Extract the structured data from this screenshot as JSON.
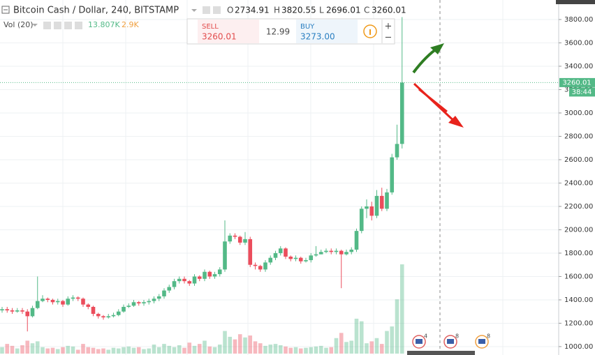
{
  "chart_data": {
    "type": "candlestick",
    "header": {
      "symbol": "Bitcoin Cash / Dollar, 240, BITSTAMP",
      "o": "O",
      "h": "H",
      "l": "L",
      "c": "C",
      "vol_title": "Vol (20)",
      "vol_value": "13.807K",
      "vol_ma": "2.9K",
      "countdown": "38:44"
    },
    "trade": {
      "sell_label": "SELL",
      "sell": "3260.01",
      "spread": "12.99",
      "buy_label": "BUY",
      "buy": "3273.00"
    },
    "events": [
      "4",
      "8",
      "8"
    ],
    "up_color": "#53b987",
    "down_color": "#eb4d5c",
    "open": [
      1310,
      1320,
      1310,
      1300,
      1310,
      1300,
      1260,
      1330,
      1390,
      1410,
      1400,
      1380,
      1390,
      1360,
      1410,
      1420,
      1410,
      1360,
      1340,
      1280,
      1260,
      1250,
      1260,
      1270,
      1300,
      1340,
      1350,
      1380,
      1370,
      1380,
      1390,
      1410,
      1430,
      1480,
      1510,
      1560,
      1580,
      1560,
      1540,
      1600,
      1580,
      1640,
      1600,
      1620,
      1660,
      1900,
      1950,
      1940,
      1890,
      1920,
      1700,
      1690,
      1660,
      1720,
      1760,
      1800,
      1840,
      1770,
      1750,
      1760,
      1730,
      1740,
      1780,
      1790,
      1810,
      1820,
      1810,
      1820,
      1790,
      1810,
      1830,
      1990,
      2180,
      2200,
      2120,
      2290,
      2180,
      2320,
      2620,
      2734.91
    ],
    "high": [
      1340,
      1340,
      1330,
      1330,
      1330,
      1320,
      1350,
      1600,
      1440,
      1420,
      1410,
      1410,
      1400,
      1430,
      1440,
      1430,
      1420,
      1370,
      1350,
      1290,
      1270,
      1280,
      1290,
      1320,
      1360,
      1370,
      1400,
      1390,
      1400,
      1410,
      1430,
      1450,
      1500,
      1530,
      1580,
      1600,
      1600,
      1570,
      1620,
      1610,
      1660,
      1650,
      1640,
      1680,
      2080,
      1970,
      1970,
      1950,
      1980,
      1940,
      1720,
      1700,
      1740,
      1780,
      1820,
      1860,
      1850,
      1780,
      1780,
      1770,
      1760,
      1800,
      1860,
      1830,
      1840,
      1840,
      1840,
      1830,
      1830,
      1850,
      2010,
      2200,
      2260,
      2240,
      2340,
      2360,
      2350,
      2650,
      2900,
      3820.55
    ],
    "low": [
      1290,
      1290,
      1280,
      1290,
      1280,
      1130,
      1250,
      1320,
      1380,
      1380,
      1360,
      1360,
      1340,
      1350,
      1390,
      1390,
      1340,
      1320,
      1260,
      1240,
      1230,
      1240,
      1250,
      1260,
      1290,
      1330,
      1340,
      1350,
      1350,
      1360,
      1370,
      1390,
      1410,
      1460,
      1490,
      1540,
      1540,
      1520,
      1520,
      1560,
      1560,
      1580,
      1580,
      1600,
      1640,
      1880,
      1920,
      1870,
      1870,
      1680,
      1660,
      1640,
      1640,
      1700,
      1740,
      1780,
      1750,
      1730,
      1730,
      1710,
      1720,
      1720,
      1770,
      1790,
      1800,
      1790,
      1790,
      1500,
      1780,
      1790,
      1810,
      1970,
      2100,
      2080,
      2100,
      2160,
      2160,
      2300,
      2600,
      2696.01
    ],
    "close": [
      1320,
      1310,
      1300,
      1310,
      1300,
      1260,
      1330,
      1390,
      1410,
      1400,
      1380,
      1390,
      1360,
      1410,
      1420,
      1410,
      1360,
      1340,
      1280,
      1260,
      1250,
      1260,
      1270,
      1300,
      1340,
      1350,
      1380,
      1370,
      1380,
      1390,
      1410,
      1430,
      1480,
      1510,
      1560,
      1580,
      1560,
      1540,
      1600,
      1580,
      1640,
      1600,
      1620,
      1660,
      1900,
      1950,
      1940,
      1890,
      1920,
      1700,
      1690,
      1660,
      1720,
      1760,
      1800,
      1840,
      1770,
      1750,
      1760,
      1730,
      1740,
      1780,
      1790,
      1810,
      1820,
      1810,
      1820,
      1790,
      1810,
      1830,
      1990,
      2180,
      2200,
      2120,
      2290,
      2180,
      2320,
      2620,
      2734.91,
      3260.01
    ],
    "volume": [
      1.0,
      1.5,
      1.2,
      0.8,
      1.3,
      2.0,
      1.6,
      1.9,
      1.0,
      0.8,
      0.9,
      0.7,
      1.0,
      1.2,
      1.1,
      0.6,
      1.5,
      1.0,
      0.9,
      0.7,
      0.8,
      0.6,
      0.9,
      0.8,
      1.0,
      1.1,
      0.9,
      1.0,
      0.7,
      0.8,
      1.4,
      1.0,
      1.5,
      1.2,
      1.0,
      1.3,
      0.9,
      1.7,
      1.2,
      1.5,
      2.0,
      1.1,
      1.0,
      1.4,
      3.5,
      2.6,
      2.2,
      3.0,
      2.5,
      2.8,
      1.9,
      1.6,
      1.2,
      1.4,
      1.5,
      1.3,
      1.1,
      0.9,
      1.0,
      0.8,
      0.9,
      1.0,
      1.1,
      1.2,
      0.9,
      1.0,
      2.4,
      3.2,
      1.8,
      2.0,
      5.4,
      5.0,
      1.6,
      1.9,
      2.4,
      1.5,
      3.5,
      4.2,
      8.4,
      13.807
    ],
    "ylim": [
      928,
      3967
    ],
    "yticks": [
      {
        "value": 1000,
        "label": "1000.00"
      },
      {
        "value": 1200,
        "label": "1200.00"
      },
      {
        "value": 1400,
        "label": "1400.00"
      },
      {
        "value": 1600,
        "label": "1600.00"
      },
      {
        "value": 1800,
        "label": "1800.00"
      },
      {
        "value": 2000,
        "label": "2000.00"
      },
      {
        "value": 2200,
        "label": "2200.00"
      },
      {
        "value": 2400,
        "label": "2400.00"
      },
      {
        "value": 2600,
        "label": "2600.00"
      },
      {
        "value": 2800,
        "label": "2800.00"
      },
      {
        "value": 3000,
        "label": "3000.00"
      },
      {
        "value": 3200,
        "label": "3200.00"
      },
      {
        "value": 3400,
        "label": "3400.00"
      },
      {
        "value": 3600,
        "label": "3600.00"
      },
      {
        "value": 3800,
        "label": "3800.00"
      }
    ],
    "grid": true
  }
}
